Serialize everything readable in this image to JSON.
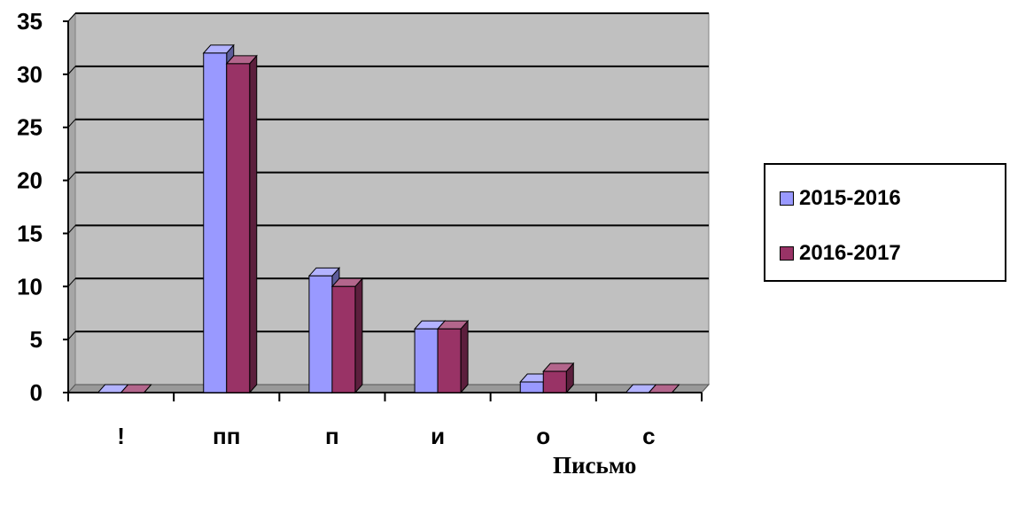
{
  "chart_data": {
    "type": "bar",
    "categories": [
      "!",
      "пп",
      "п",
      "и",
      "о",
      "с"
    ],
    "series": [
      {
        "name": "2015-2016",
        "values": [
          0,
          32,
          11,
          6,
          1,
          0
        ],
        "color": "#9999ff"
      },
      {
        "name": "2016-2017",
        "values": [
          0,
          31,
          10,
          6,
          2,
          0
        ],
        "color": "#993366"
      }
    ],
    "ylim": [
      0,
      35
    ],
    "yticks": [
      0,
      5,
      10,
      15,
      20,
      25,
      30,
      35
    ],
    "grid": true,
    "legend_position": "right",
    "plot_background": "#c0c0c0",
    "style": "3d-clustered-column"
  },
  "footer_text": "Письмо"
}
